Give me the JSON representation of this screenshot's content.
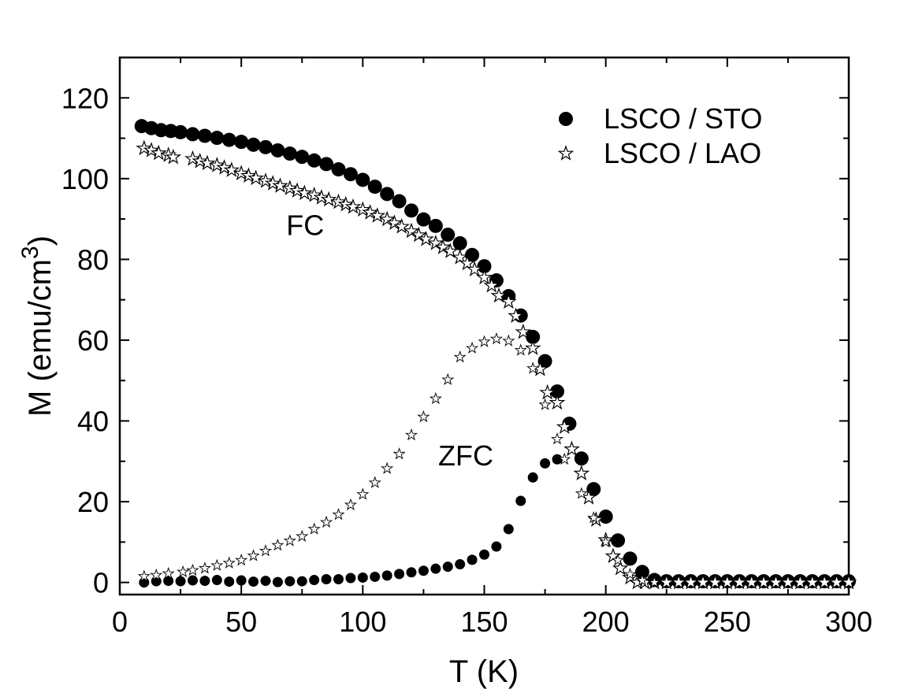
{
  "chart_data": {
    "type": "scatter",
    "xlabel": "T (K)",
    "ylabel_main": "M (emu/cm",
    "ylabel_sup": "3",
    "ylabel_close": ")",
    "xlim": [
      0,
      300
    ],
    "ylim": [
      -3,
      130
    ],
    "xticks": [
      0,
      50,
      100,
      150,
      200,
      250,
      300
    ],
    "yticks": [
      0,
      20,
      40,
      60,
      80,
      100,
      120
    ],
    "x_minor_step": 25,
    "y_minor_step": 10,
    "legend": [
      {
        "label": "LSCO / STO",
        "marker": "filled-circle"
      },
      {
        "label": "LSCO / LAO",
        "marker": "open-star"
      }
    ],
    "annotations": [
      {
        "text": "FC",
        "x": 75,
        "y": 86
      },
      {
        "text": "ZFC",
        "x": 144,
        "y": 29
      }
    ],
    "series": [
      {
        "name": "LSCO / STO FC",
        "marker": "filled-circle",
        "x": [
          9,
          13,
          17,
          21,
          25,
          30,
          35,
          40,
          45,
          50,
          55,
          60,
          65,
          70,
          75,
          80,
          85,
          90,
          95,
          100,
          105,
          110,
          115,
          120,
          125,
          130,
          135,
          140,
          145,
          150,
          155,
          160,
          165,
          170,
          175,
          180,
          185,
          190,
          195,
          200,
          205,
          210,
          215,
          220,
          225,
          230,
          235,
          240,
          245,
          250,
          255,
          260,
          265,
          270,
          275,
          280,
          285,
          290,
          295,
          300
        ],
        "y": [
          113,
          112.5,
          112,
          111.8,
          111.5,
          111,
          110.6,
          110.1,
          109.6,
          109.1,
          108.4,
          107.8,
          107,
          106.2,
          105.4,
          104.5,
          103.6,
          102.3,
          101.1,
          99.7,
          98,
          96.2,
          94.4,
          92.1,
          89.9,
          88.3,
          86.1,
          84,
          81.1,
          78.3,
          74.8,
          70.9,
          66.1,
          60.8,
          54.8,
          47.3,
          39.3,
          30.7,
          23.1,
          16.3,
          10.4,
          5.9,
          2.6,
          0.6,
          0.3,
          0.3,
          0.3,
          0.3,
          0.3,
          0.3,
          0.3,
          0.3,
          0.3,
          0.3,
          0.3,
          0.3,
          0.3,
          0.3,
          0.3,
          0.3
        ]
      },
      {
        "name": "LSCO / STO ZFC",
        "marker": "filled-circle",
        "x": [
          10,
          15,
          20,
          25,
          30,
          35,
          40,
          45,
          50,
          55,
          60,
          65,
          70,
          75,
          80,
          85,
          90,
          95,
          100,
          105,
          110,
          115,
          120,
          125,
          130,
          135,
          140,
          145,
          150,
          155,
          160,
          165,
          170,
          175,
          180
        ],
        "y": [
          0,
          0.3,
          0.4,
          0.3,
          0.5,
          0.4,
          0.6,
          0.2,
          0.5,
          0.2,
          0.4,
          0.1,
          0.3,
          0.3,
          0.6,
          0.8,
          0.8,
          1.1,
          1.2,
          1.4,
          1.7,
          2.1,
          2.5,
          2.9,
          3.4,
          3.9,
          4.5,
          5.6,
          6.9,
          8.9,
          13.2,
          20.2,
          26,
          29.5,
          30.5
        ]
      },
      {
        "name": "LSCO / LAO FC",
        "marker": "open-star",
        "x": [
          10,
          13,
          16,
          20,
          22,
          30,
          33,
          36,
          40,
          43,
          46,
          50,
          53,
          56,
          60,
          63,
          66,
          70,
          73,
          76,
          80,
          83,
          86,
          90,
          93,
          96,
          100,
          103,
          106,
          110,
          113,
          116,
          120,
          123,
          126,
          130,
          133,
          136,
          140,
          143,
          146,
          150,
          153,
          156,
          160,
          163,
          166,
          170,
          173,
          176,
          180,
          183,
          186,
          190,
          193,
          196,
          200,
          203,
          206,
          210,
          213,
          216,
          220,
          225,
          230,
          235,
          240,
          245,
          250,
          255,
          260,
          265,
          270,
          275,
          280,
          285,
          290,
          295,
          300
        ],
        "y": [
          107.5,
          107,
          106.3,
          105.8,
          105.3,
          104.9,
          104.3,
          103.8,
          103.3,
          102.7,
          102.1,
          101.3,
          100.7,
          100.1,
          99.4,
          98.8,
          98.2,
          97.6,
          97,
          96.4,
          95.9,
          95.3,
          94.8,
          94.2,
          93.6,
          93,
          92.3,
          91.6,
          90.8,
          89.9,
          89,
          88.1,
          87,
          86,
          85,
          84,
          83,
          82,
          80.5,
          79,
          77.5,
          75.5,
          73.5,
          71,
          69.5,
          66,
          62,
          58,
          52.8,
          47,
          44.5,
          38.5,
          33,
          27,
          21,
          15.5,
          10.5,
          6.5,
          3.5,
          1.2,
          0,
          0,
          0,
          0,
          0,
          0,
          0,
          0,
          0,
          0,
          0,
          0,
          0,
          0,
          0,
          0,
          0,
          0,
          0
        ]
      },
      {
        "name": "LSCO / LAO ZFC",
        "marker": "open-star",
        "x": [
          10,
          15,
          20,
          26,
          30,
          35,
          40,
          45,
          50,
          55,
          60,
          65,
          70,
          75,
          80,
          85,
          90,
          95,
          100,
          105,
          110,
          115,
          120,
          125,
          130,
          135,
          140,
          145,
          150,
          155,
          160,
          165,
          170,
          175,
          180,
          183,
          190,
          195,
          200,
          205,
          210,
          215,
          220
        ],
        "y": [
          1.5,
          1.8,
          2.2,
          2.6,
          3,
          3.5,
          4.2,
          4.8,
          5.5,
          6.6,
          7.8,
          9.2,
          10.3,
          11.4,
          13.2,
          14.9,
          16.8,
          19.2,
          21.8,
          24.7,
          28.2,
          31.8,
          36.5,
          41,
          45.5,
          50.2,
          55.8,
          58,
          59.6,
          60.3,
          59.8,
          57.5,
          53,
          44,
          35.5,
          30.5,
          22,
          16,
          10,
          5.5,
          2,
          0.5,
          0
        ]
      }
    ]
  }
}
